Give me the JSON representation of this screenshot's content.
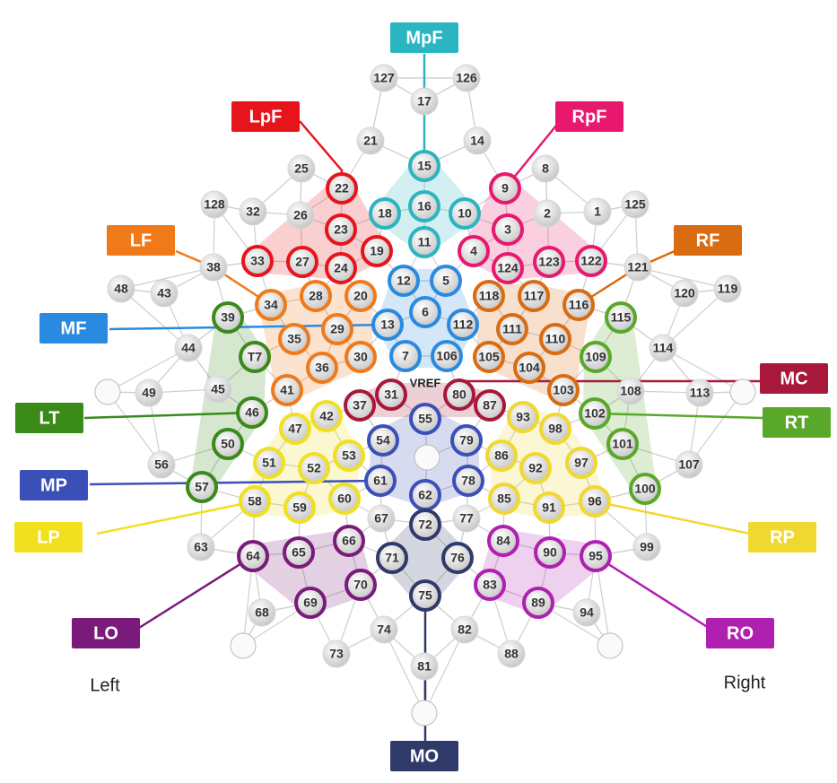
{
  "regions": [
    {
      "label": "MpF",
      "color": "#2ab5c0"
    },
    {
      "label": "LpF",
      "color": "#e8141c"
    },
    {
      "label": "RpF",
      "color": "#e8186e"
    },
    {
      "label": "LF",
      "color": "#f07a1a"
    },
    {
      "label": "RF",
      "color": "#d96b10"
    },
    {
      "label": "MF",
      "color": "#2a8ae0"
    },
    {
      "label": "MC",
      "color": "#a8183a"
    },
    {
      "label": "LT",
      "color": "#3a8a1a"
    },
    {
      "label": "RT",
      "color": "#5aa82a"
    },
    {
      "label": "MP",
      "color": "#3a50b8"
    },
    {
      "label": "LP",
      "color": "#f0e020"
    },
    {
      "label": "RP",
      "color": "#f0d830"
    },
    {
      "label": "LO",
      "color": "#7a1a7a"
    },
    {
      "label": "RO",
      "color": "#b020b0"
    },
    {
      "label": "MO",
      "color": "#303a6a"
    }
  ],
  "electrodes": [
    "127",
    "126",
    "17",
    "21",
    "14",
    "25",
    "8",
    "128",
    "32",
    "26",
    "2",
    "1",
    "125",
    "38",
    "121",
    "48",
    "43",
    "120",
    "119",
    "44",
    "114",
    "45",
    "49",
    "108",
    "113",
    "56",
    "107",
    "67",
    "77",
    "63",
    "99",
    "68",
    "94",
    "74",
    "82",
    "73",
    "88",
    "81",
    "15",
    "18",
    "16",
    "10",
    "11",
    "22",
    "23",
    "19",
    "33",
    "27",
    "24",
    "9",
    "3",
    "4",
    "124",
    "123",
    "122",
    "28",
    "20",
    "34",
    "29",
    "35",
    "36",
    "30",
    "41",
    "118",
    "117",
    "116",
    "111",
    "110",
    "105",
    "104",
    "103",
    "12",
    "5",
    "6",
    "13",
    "112",
    "7",
    "106",
    "31",
    "37",
    "80",
    "87",
    "39",
    "T7",
    "46",
    "50",
    "57",
    "115",
    "109",
    "102",
    "101",
    "100",
    "55",
    "54",
    "79",
    "61",
    "78",
    "62",
    "42",
    "47",
    "53",
    "51",
    "52",
    "58",
    "60",
    "59",
    "93",
    "98",
    "86",
    "97",
    "92",
    "85",
    "96",
    "91",
    "66",
    "64",
    "65",
    "70",
    "69",
    "84",
    "90",
    "95",
    "83",
    "89",
    "72",
    "71",
    "76",
    "75"
  ],
  "reference": "VREF",
  "sides": {
    "left": "Left",
    "right": "Right"
  }
}
